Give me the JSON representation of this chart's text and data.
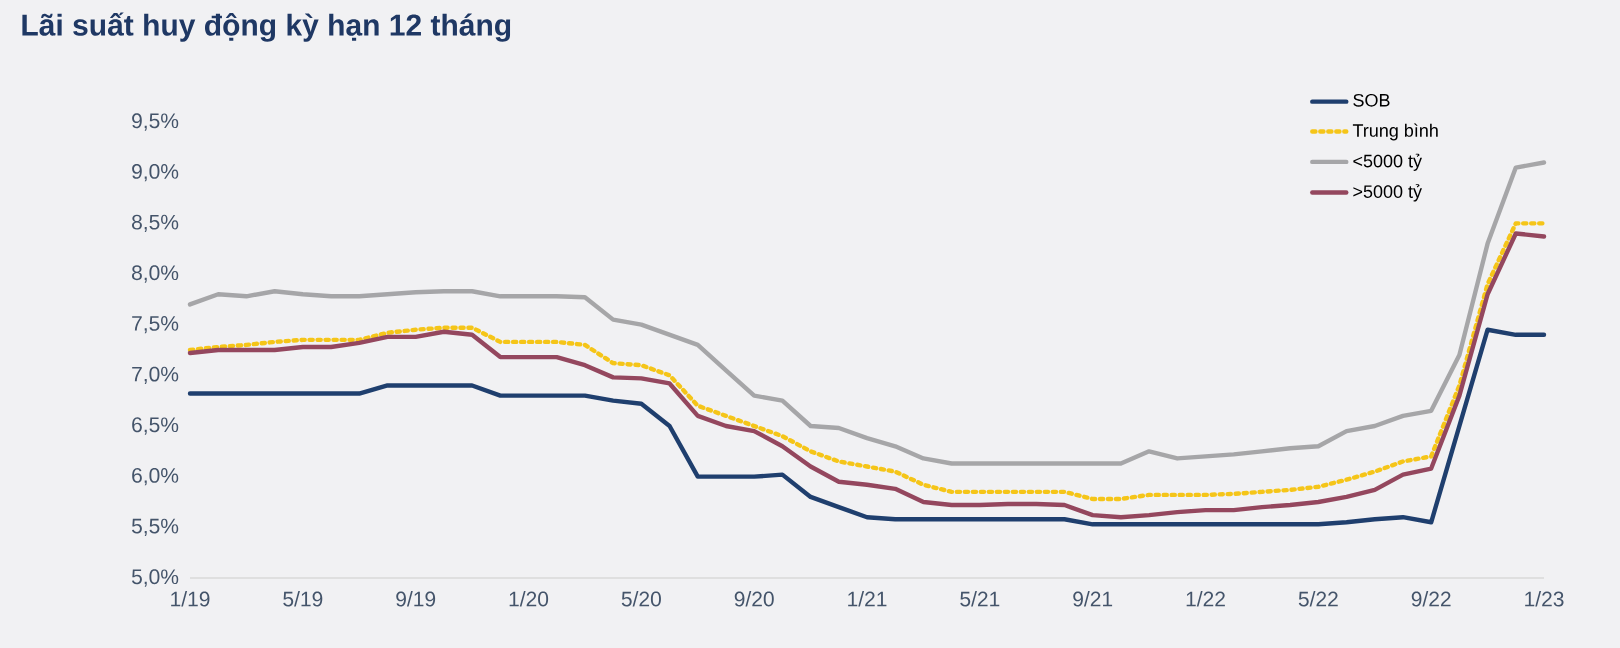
{
  "chart_data": {
    "type": "line",
    "title": "Lãi suất huy động kỳ hạn 12 tháng",
    "x": [
      "2019-01",
      "2019-02",
      "2019-03",
      "2019-04",
      "2019-05",
      "2019-06",
      "2019-07",
      "2019-08",
      "2019-09",
      "2019-10",
      "2019-11",
      "2019-12",
      "2020-01",
      "2020-02",
      "2020-03",
      "2020-04",
      "2020-05",
      "2020-06",
      "2020-07",
      "2020-08",
      "2020-09",
      "2020-10",
      "2020-11",
      "2020-12",
      "2021-01",
      "2021-02",
      "2021-03",
      "2021-04",
      "2021-05",
      "2021-06",
      "2021-07",
      "2021-08",
      "2021-09",
      "2021-10",
      "2021-11",
      "2021-12",
      "2022-01",
      "2022-02",
      "2022-03",
      "2022-04",
      "2022-05",
      "2022-06",
      "2022-07",
      "2022-08",
      "2022-09",
      "2022-10",
      "2022-11",
      "2022-12",
      "2023-01"
    ],
    "series": [
      {
        "name": "SOB",
        "color": "#1f3f6e",
        "values": [
          6.82,
          6.82,
          6.82,
          6.82,
          6.82,
          6.82,
          6.82,
          6.9,
          6.9,
          6.9,
          6.9,
          6.8,
          6.8,
          6.8,
          6.8,
          6.75,
          6.72,
          6.5,
          6.0,
          6.0,
          6.0,
          6.02,
          5.8,
          5.7,
          5.6,
          5.58,
          5.58,
          5.58,
          5.58,
          5.58,
          5.58,
          5.58,
          5.53,
          5.53,
          5.53,
          5.53,
          5.53,
          5.53,
          5.53,
          5.53,
          5.53,
          5.55,
          5.58,
          5.6,
          5.55,
          6.5,
          7.45,
          7.4,
          7.4
        ]
      },
      {
        "name": "Trung bình",
        "color": "#f5c518",
        "line_style": "dotted",
        "values": [
          7.25,
          7.28,
          7.3,
          7.33,
          7.35,
          7.35,
          7.35,
          7.42,
          7.45,
          7.47,
          7.47,
          7.33,
          7.33,
          7.33,
          7.3,
          7.12,
          7.1,
          7.0,
          6.7,
          6.6,
          6.5,
          6.4,
          6.25,
          6.15,
          6.1,
          6.05,
          5.92,
          5.85,
          5.85,
          5.85,
          5.85,
          5.85,
          5.78,
          5.78,
          5.82,
          5.82,
          5.82,
          5.83,
          5.85,
          5.87,
          5.9,
          5.97,
          6.05,
          6.15,
          6.2,
          6.9,
          7.9,
          8.5,
          8.5
        ]
      },
      {
        "name": "<5000 tỷ",
        "color": "#a6a6a8",
        "values": [
          7.7,
          7.8,
          7.78,
          7.83,
          7.8,
          7.78,
          7.78,
          7.8,
          7.82,
          7.83,
          7.83,
          7.78,
          7.78,
          7.78,
          7.77,
          7.55,
          7.5,
          7.4,
          7.3,
          7.05,
          6.8,
          6.75,
          6.5,
          6.48,
          6.38,
          6.3,
          6.18,
          6.13,
          6.13,
          6.13,
          6.13,
          6.13,
          6.13,
          6.13,
          6.25,
          6.18,
          6.2,
          6.22,
          6.25,
          6.28,
          6.3,
          6.45,
          6.5,
          6.6,
          6.65,
          7.2,
          8.3,
          9.05,
          9.1
        ]
      },
      {
        "name": ">5000 tỷ",
        "color": "#94475e",
        "values": [
          7.22,
          7.25,
          7.25,
          7.25,
          7.28,
          7.28,
          7.32,
          7.38,
          7.38,
          7.43,
          7.4,
          7.18,
          7.18,
          7.18,
          7.1,
          6.98,
          6.97,
          6.92,
          6.6,
          6.5,
          6.45,
          6.3,
          6.1,
          5.95,
          5.92,
          5.88,
          5.75,
          5.72,
          5.72,
          5.73,
          5.73,
          5.72,
          5.62,
          5.6,
          5.62,
          5.65,
          5.67,
          5.67,
          5.7,
          5.72,
          5.75,
          5.8,
          5.87,
          6.02,
          6.08,
          6.8,
          7.8,
          8.4,
          8.37
        ]
      }
    ],
    "xlim": [
      "2019-01",
      "2023-01"
    ],
    "xticks": [
      {
        "value": "2019-01",
        "label": "1/19"
      },
      {
        "value": "2019-05",
        "label": "5/19"
      },
      {
        "value": "2019-09",
        "label": "9/19"
      },
      {
        "value": "2020-01",
        "label": "1/20"
      },
      {
        "value": "2020-05",
        "label": "5/20"
      },
      {
        "value": "2020-09",
        "label": "9/20"
      },
      {
        "value": "2021-01",
        "label": "1/21"
      },
      {
        "value": "2021-05",
        "label": "5/21"
      },
      {
        "value": "2021-09",
        "label": "9/21"
      },
      {
        "value": "2022-01",
        "label": "1/22"
      },
      {
        "value": "2022-05",
        "label": "5/22"
      },
      {
        "value": "2022-09",
        "label": "9/22"
      },
      {
        "value": "2023-01",
        "label": "1/23"
      }
    ],
    "ylim": [
      5.0,
      9.5
    ],
    "yticks": [
      {
        "value": 5.0,
        "label": "5,0%"
      },
      {
        "value": 5.5,
        "label": "5,5%"
      },
      {
        "value": 6.0,
        "label": "6,0%"
      },
      {
        "value": 6.5,
        "label": "6,5%"
      },
      {
        "value": 7.0,
        "label": "7,0%"
      },
      {
        "value": 7.5,
        "label": "7,5%"
      },
      {
        "value": 8.0,
        "label": "8,0%"
      },
      {
        "value": 8.5,
        "label": "8,5%"
      },
      {
        "value": 9.0,
        "label": "9,0%"
      },
      {
        "value": 9.5,
        "label": "9,5%"
      }
    ],
    "grid": false,
    "legend": "top right",
    "marker": "none",
    "line_style": "solid"
  }
}
